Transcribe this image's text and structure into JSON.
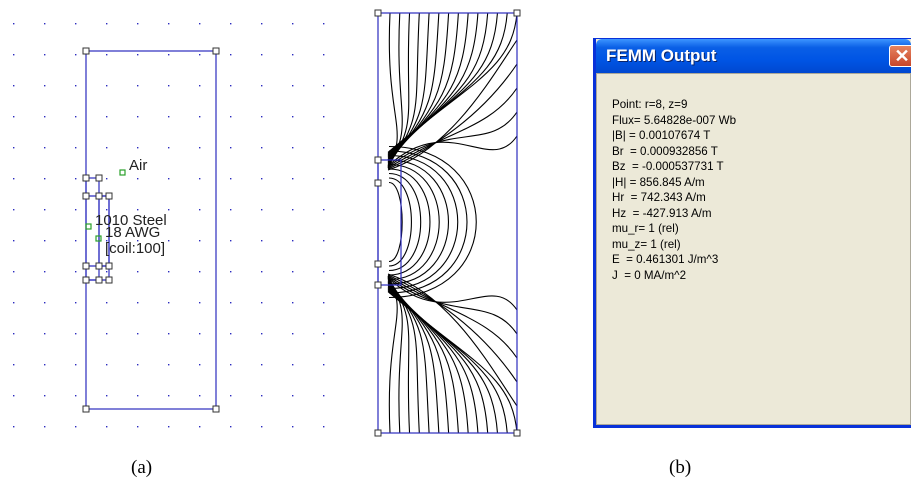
{
  "figure_a": {
    "labels": {
      "air": "Air",
      "steel": "1010 Steel",
      "wire": "18 AWG",
      "coil": "[coil:100]"
    }
  },
  "captions": {
    "a": "(a)",
    "b": "(b)"
  },
  "femm_output": {
    "title": "FEMM Output",
    "close_glyph": "✕",
    "lines": [
      "Point: r=8, z=9",
      "Flux= 5.64828e-007 Wb",
      "|B| = 0.00107674 T",
      "Br  = 0.000932856 T",
      "Bz  = -0.000537731 T",
      "|H| = 856.845 A/m",
      "Hr  = 742.343 A/m",
      "Hz  = -427.913 A/m",
      "mu_r= 1 (rel)",
      "mu_z= 1 (rel)",
      "E  = 0.461301 J/m^3",
      "J  = 0 MA/m^2"
    ]
  },
  "colors": {
    "geometry_blue": "#2b2bbf",
    "xp_titlebar": "#0055e5",
    "xp_window_bg": "#ece9d8",
    "flux_lines": "#000000",
    "label_marker": "#2aa02a"
  }
}
